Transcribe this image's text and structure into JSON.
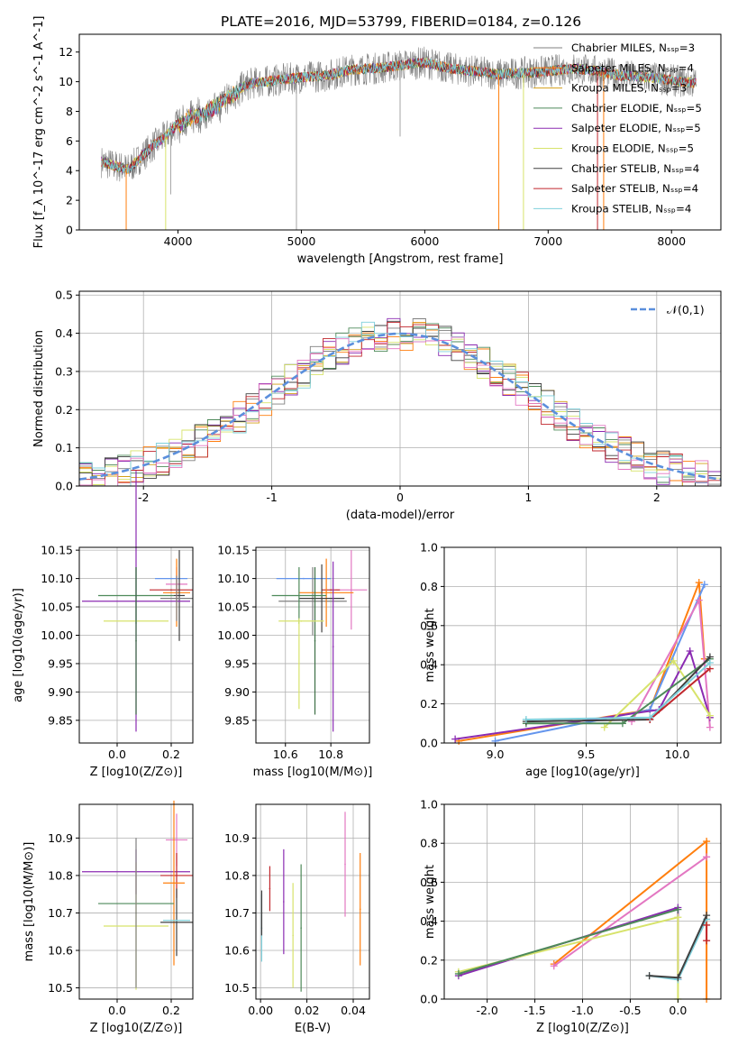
{
  "title": "PLATE=2016, MJD=53799, FIBERID=0184, z=0.126",
  "colors": [
    "#808080",
    "#ff7f0e",
    "#d4a017",
    "#4e8a5a",
    "#8b2bb2",
    "#d7e36b",
    "#404040",
    "#c0262c",
    "#7fd0dc"
  ],
  "chart_data": [
    {
      "id": "spectrum",
      "type": "line",
      "title": "PLATE=2016, MJD=53799, FIBERID=0184, z=0.126",
      "xlabel": "wavelength [Angstrom, rest frame]",
      "ylabel": "Flux [f_λ 10^-17 erg cm^-2 s^-1 A^-1]",
      "xlim": [
        3200,
        8400
      ],
      "ylim": [
        0,
        13.2
      ],
      "xticks": [
        4000,
        5000,
        6000,
        7000,
        8000
      ],
      "yticks": [
        0,
        2,
        4,
        6,
        8,
        10,
        12
      ],
      "grid": false,
      "legend_position": "right",
      "legend": [
        "Chabrier MILES, N_SSP=3",
        "Salpeter MILES, N_SSP=4",
        "Kroupa MILES, N_SSP=3",
        "Chabrier ELODIE, N_SSP=5",
        "Salpeter ELODIE, N_SSP=5",
        "Kroupa ELODIE, N_SSP=5",
        "Chabrier STELIB, N_SSP=4",
        "Salpeter STELIB, N_SSP=4",
        "Kroupa STELIB, N_SSP=4"
      ],
      "continuum_points": [
        [
          3380,
          4.6
        ],
        [
          3500,
          4.3
        ],
        [
          3600,
          4.1
        ],
        [
          3700,
          4.9
        ],
        [
          3800,
          5.7
        ],
        [
          3900,
          6.3
        ],
        [
          4000,
          7.2
        ],
        [
          4100,
          7.9
        ],
        [
          4200,
          8.1
        ],
        [
          4400,
          9.2
        ],
        [
          4600,
          9.9
        ],
        [
          4800,
          10.1
        ],
        [
          5000,
          10.3
        ],
        [
          5200,
          10.4
        ],
        [
          5400,
          10.8
        ],
        [
          5600,
          10.9
        ],
        [
          5800,
          11.1
        ],
        [
          6000,
          11.3
        ],
        [
          6200,
          10.9
        ],
        [
          6400,
          10.7
        ],
        [
          6600,
          10.5
        ],
        [
          6800,
          10.6
        ],
        [
          7000,
          10.7
        ],
        [
          7200,
          10.9
        ],
        [
          7400,
          10.7
        ],
        [
          7600,
          10.4
        ],
        [
          7800,
          10.3
        ],
        [
          8000,
          10.1
        ],
        [
          8200,
          9.9
        ]
      ]
    },
    {
      "id": "residuals",
      "type": "histogram",
      "xlabel": "(data-model)/error",
      "ylabel": "Normed distribution",
      "xlim": [
        -2.5,
        2.5
      ],
      "ylim": [
        0,
        0.51
      ],
      "xticks": [
        -2,
        -1,
        0,
        1,
        2
      ],
      "yticks": [
        0.0,
        0.1,
        0.2,
        0.3,
        0.4,
        0.5
      ],
      "grid": true,
      "legend_position": "upper right",
      "legend": [
        "𝒩(0,1)"
      ],
      "bin_width": 0.1,
      "series_colors": [
        "#808080",
        "#ff7f0e",
        "#d4a017",
        "#4e8a5a",
        "#8b2bb2",
        "#d7e36b",
        "#404040",
        "#c0262c",
        "#7fd0dc",
        "#e377c2"
      ]
    },
    {
      "id": "z_age",
      "type": "scatter",
      "xlabel": "Z [log10(Z/Z⊙)]",
      "ylabel": "age  [log10(age/yr)]",
      "xlim": [
        -0.14,
        0.28
      ],
      "ylim": [
        9.81,
        10.155
      ],
      "xticks": [
        0.0,
        0.2
      ],
      "yticks": [
        9.85,
        9.9,
        9.95,
        10.0,
        10.05,
        10.1,
        10.15
      ],
      "grid": true,
      "points": [
        {
          "color": "#6495ed",
          "x": 0.2,
          "y": 10.1,
          "xerr": 0.06,
          "yerr": 0.0
        },
        {
          "color": "#e377c2",
          "x": 0.22,
          "y": 10.09,
          "xerr": 0.04,
          "yerr": 0.03
        },
        {
          "color": "#c0262c",
          "x": 0.2,
          "y": 10.08,
          "xerr": 0.08,
          "yerr": 0.0
        },
        {
          "color": "#ff7f0e",
          "x": 0.22,
          "y": 10.075,
          "xerr": 0.05,
          "yerr": 0.06
        },
        {
          "color": "#4e8a5a",
          "x": 0.07,
          "y": 10.07,
          "xerr": 0.14,
          "yerr": 0.05
        },
        {
          "color": "#404040",
          "x": 0.23,
          "y": 10.07,
          "xerr": 0.02,
          "yerr": 0.08
        },
        {
          "color": "#8b2bb2",
          "x": 0.07,
          "y": 10.06,
          "xerr": 0.2,
          "yerr": 0.23
        },
        {
          "color": "#d7e36b",
          "x": 0.07,
          "y": 10.025,
          "xerr": 0.12,
          "yerr": 0.0
        },
        {
          "color": "#808080",
          "x": 0.22,
          "y": 10.065,
          "xerr": 0.06,
          "yerr": 0.04
        },
        {
          "color": "#3b6e44",
          "x": 0.07,
          "y": 9.99,
          "xerr": 0.0,
          "yerr": 0.13
        }
      ]
    },
    {
      "id": "mass_age",
      "type": "scatter",
      "xlabel": "mass [log10(M/M⊙)]",
      "ylabel": "",
      "xlim": [
        10.47,
        10.97
      ],
      "ylim": [
        9.81,
        10.155
      ],
      "xticks": [
        10.6,
        10.8
      ],
      "yticks": [
        9.85,
        9.9,
        9.95,
        10.0,
        10.05,
        10.1,
        10.15
      ],
      "grid": true,
      "points": [
        {
          "color": "#6495ed",
          "x": 10.68,
          "y": 10.1,
          "xerr": 0.12,
          "yerr": 0.0
        },
        {
          "color": "#808080",
          "x": 10.72,
          "y": 10.06,
          "xerr": 0.15,
          "yerr": 0.06
        },
        {
          "color": "#e377c2",
          "x": 10.89,
          "y": 10.08,
          "xerr": 0.07,
          "yerr": 0.07
        },
        {
          "color": "#c0262c",
          "x": 10.8,
          "y": 10.08,
          "xerr": 0.04,
          "yerr": 0.0
        },
        {
          "color": "#ff7f0e",
          "x": 10.78,
          "y": 10.075,
          "xerr": 0.12,
          "yerr": 0.06
        },
        {
          "color": "#404040",
          "x": 10.76,
          "y": 10.065,
          "xerr": 0.1,
          "yerr": 0.06
        },
        {
          "color": "#4e8a5a",
          "x": 10.66,
          "y": 10.07,
          "xerr": 0.12,
          "yerr": 0.05
        },
        {
          "color": "#3b6e44",
          "x": 10.73,
          "y": 9.99,
          "xerr": 0.0,
          "yerr": 0.13
        },
        {
          "color": "#8b2bb2",
          "x": 10.81,
          "y": 9.98,
          "xerr": 0.0,
          "yerr": 0.15
        },
        {
          "color": "#d7e36b",
          "x": 10.67,
          "y": 10.025,
          "xerr": 0.1,
          "yerr": 0.0
        },
        {
          "color": "#d7e36b",
          "x": 10.66,
          "y": 9.95,
          "xerr": 0.0,
          "yerr": 0.08
        }
      ]
    },
    {
      "id": "age_weight",
      "type": "line",
      "xlabel": "age  [log10(age/yr)]",
      "ylabel": "mass weight",
      "xlim": [
        8.72,
        10.24
      ],
      "ylim": [
        0,
        1.0
      ],
      "xticks": [
        9.0,
        9.5,
        10.0
      ],
      "yticks": [
        0.0,
        0.2,
        0.4,
        0.6,
        0.8,
        1.0
      ],
      "grid": true,
      "series": [
        {
          "color": "#ff7f0e",
          "x": [
            8.8,
            9.85,
            10.12,
            10.15
          ],
          "y": [
            0.01,
            0.17,
            0.82,
            0.43
          ]
        },
        {
          "color": "#6495ed",
          "x": [
            9.0,
            9.85,
            10.15
          ],
          "y": [
            0.01,
            0.17,
            0.81
          ]
        },
        {
          "color": "#e377c2",
          "x": [
            9.75,
            10.12,
            10.18
          ],
          "y": [
            0.11,
            0.73,
            0.08
          ]
        },
        {
          "color": "#8b2bb2",
          "x": [
            8.78,
            9.9,
            10.07,
            10.18
          ],
          "y": [
            0.02,
            0.17,
            0.47,
            0.13
          ]
        },
        {
          "color": "#d7e36b",
          "x": [
            9.6,
            9.98,
            10.18
          ],
          "y": [
            0.08,
            0.42,
            0.14
          ]
        },
        {
          "color": "#4e8a5a",
          "x": [
            9.17,
            9.7,
            10.18
          ],
          "y": [
            0.1,
            0.1,
            0.43
          ]
        },
        {
          "color": "#404040",
          "x": [
            9.17,
            9.85,
            10.18
          ],
          "y": [
            0.11,
            0.12,
            0.44
          ]
        },
        {
          "color": "#c0262c",
          "x": [
            9.85,
            10.18
          ],
          "y": [
            0.12,
            0.38
          ]
        },
        {
          "color": "#7fd0dc",
          "x": [
            9.17,
            9.85,
            10.18
          ],
          "y": [
            0.12,
            0.13,
            0.41
          ]
        }
      ]
    },
    {
      "id": "z_mass",
      "type": "scatter",
      "xlabel": "Z [log10(Z/Z⊙)]",
      "ylabel": "mass [log10(M/M⊙)]",
      "xlim": [
        -0.14,
        0.28
      ],
      "ylim": [
        10.47,
        10.99
      ],
      "xticks": [
        0.0,
        0.2
      ],
      "yticks": [
        10.5,
        10.6,
        10.7,
        10.8,
        10.9
      ],
      "grid": true,
      "points": [
        {
          "color": "#e377c2",
          "x": 0.22,
          "y": 10.895,
          "xerr": 0.04,
          "yerr": 0.07
        },
        {
          "color": "#8b2bb2",
          "x": 0.07,
          "y": 10.81,
          "xerr": 0.2,
          "yerr": 0.06
        },
        {
          "color": "#c0262c",
          "x": 0.22,
          "y": 10.8,
          "xerr": 0.06,
          "yerr": 0.06
        },
        {
          "color": "#ff7f0e",
          "x": 0.21,
          "y": 10.78,
          "xerr": 0.04,
          "yerr": 0.22
        },
        {
          "color": "#4e8a5a",
          "x": 0.07,
          "y": 10.725,
          "xerr": 0.14,
          "yerr": 0.0
        },
        {
          "color": "#404040",
          "x": 0.22,
          "y": 10.675,
          "xerr": 0.06,
          "yerr": 0.09
        },
        {
          "color": "#7fd0dc",
          "x": 0.22,
          "y": 10.68,
          "xerr": 0.05,
          "yerr": 0.0
        },
        {
          "color": "#d7e36b",
          "x": 0.07,
          "y": 10.665,
          "xerr": 0.12,
          "yerr": 0.17
        },
        {
          "color": "#808080",
          "x": 0.07,
          "y": 10.7,
          "xerr": 0.0,
          "yerr": 0.2
        }
      ]
    },
    {
      "id": "ebv_mass",
      "type": "scatter",
      "xlabel": "E(B-V)",
      "ylabel": "",
      "xlim": [
        -0.002,
        0.047
      ],
      "ylim": [
        10.47,
        10.99
      ],
      "xticks": [
        0.0,
        0.02,
        0.04
      ],
      "yticks": [
        10.5,
        10.6,
        10.7,
        10.8,
        10.9
      ],
      "grid": true,
      "points": [
        {
          "color": "#7fd0dc",
          "x": 0.0005,
          "y": 10.66,
          "xerr": 0,
          "yerr": 0.09
        },
        {
          "color": "#c0262c",
          "x": 0.004,
          "y": 10.765,
          "xerr": 0,
          "yerr": 0.06
        },
        {
          "color": "#8b2bb2",
          "x": 0.01,
          "y": 10.73,
          "xerr": 0,
          "yerr": 0.14
        },
        {
          "color": "#d7e36b",
          "x": 0.014,
          "y": 10.64,
          "xerr": 0,
          "yerr": 0.14
        },
        {
          "color": "#4e8a5a",
          "x": 0.0175,
          "y": 10.66,
          "xerr": 0,
          "yerr": 0.17
        },
        {
          "color": "#e377c2",
          "x": 0.0365,
          "y": 10.83,
          "xerr": 0,
          "yerr": 0.14
        },
        {
          "color": "#ff7f0e",
          "x": 0.043,
          "y": 10.71,
          "xerr": 0,
          "yerr": 0.15
        },
        {
          "color": "#404040",
          "x": 0.0005,
          "y": 10.7,
          "xerr": 0,
          "yerr": 0.06
        }
      ]
    },
    {
      "id": "z_weight",
      "type": "line",
      "xlabel": "Z [log10(Z/Z⊙)]",
      "ylabel": "mass weight",
      "xlim": [
        -2.45,
        0.45
      ],
      "ylim": [
        0,
        1.0
      ],
      "xticks": [
        -2.0,
        -1.5,
        -1.0,
        -0.5,
        0.0
      ],
      "yticks": [
        0.0,
        0.2,
        0.4,
        0.6,
        0.8,
        1.0
      ],
      "grid": true,
      "series": [
        {
          "color": "#ff7f0e",
          "x": [
            -1.3,
            0.3,
            0.3
          ],
          "y": [
            0.18,
            0.81,
            0.0
          ]
        },
        {
          "color": "#e377c2",
          "x": [
            -1.3,
            0.3
          ],
          "y": [
            0.17,
            0.73
          ]
        },
        {
          "color": "#8b2bb2",
          "x": [
            -2.3,
            0.0,
            0.0
          ],
          "y": [
            0.12,
            0.47,
            0.1
          ]
        },
        {
          "color": "#d7e36b",
          "x": [
            -2.3,
            0.0,
            0.0
          ],
          "y": [
            0.14,
            0.42,
            0.0
          ]
        },
        {
          "color": "#4e8a5a",
          "x": [
            -2.3,
            0.0
          ],
          "y": [
            0.13,
            0.46
          ]
        },
        {
          "color": "#7fd0dc",
          "x": [
            -0.3,
            0.0,
            0.3
          ],
          "y": [
            0.12,
            0.1,
            0.41
          ]
        },
        {
          "color": "#404040",
          "x": [
            -0.3,
            0.0,
            0.3
          ],
          "y": [
            0.12,
            0.11,
            0.43
          ]
        },
        {
          "color": "#c0262c",
          "x": [
            0.3,
            0.3
          ],
          "y": [
            0.3,
            0.38
          ]
        }
      ]
    }
  ]
}
